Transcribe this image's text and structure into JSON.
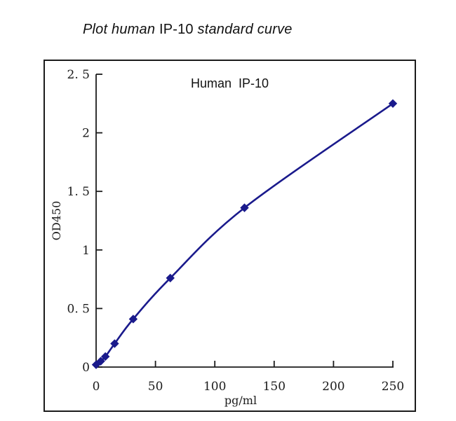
{
  "page_title": {
    "lead_italic": "Plot human ",
    "upright": "IP-10",
    "tail_italic": " standard curve"
  },
  "chart": {
    "inner_title": "Human  IP-10",
    "y_axis": {
      "label": "OD450",
      "tick_labels": [
        "2. 5",
        "2",
        "1. 5",
        "1",
        "0. 5",
        "0"
      ],
      "tick_values": [
        2.5,
        2,
        1.5,
        1,
        0.5,
        0
      ]
    },
    "x_axis": {
      "label": "pg/ml",
      "tick_labels": [
        "0",
        "50",
        "100",
        "150",
        "200",
        "250"
      ],
      "tick_values": [
        0,
        50,
        100,
        150,
        200,
        250
      ]
    }
  },
  "chart_data": {
    "type": "line",
    "title": "Human IP-10",
    "xlabel": "pg/ml",
    "ylabel": "OD450",
    "x": [
      0,
      3.9,
      7.8,
      15.6,
      31.25,
      62.5,
      125,
      250
    ],
    "y": [
      0.02,
      0.05,
      0.09,
      0.2,
      0.41,
      0.76,
      1.36,
      2.25
    ],
    "xlim": [
      0,
      250
    ],
    "ylim": [
      0,
      2.5
    ],
    "marker": "diamond",
    "grid": false,
    "legend_position": "none"
  },
  "colors": {
    "line": "#1a1a8c",
    "axis": "#1b1b1b",
    "text": "#1b1b1b",
    "frame": "#1b1b1b"
  }
}
